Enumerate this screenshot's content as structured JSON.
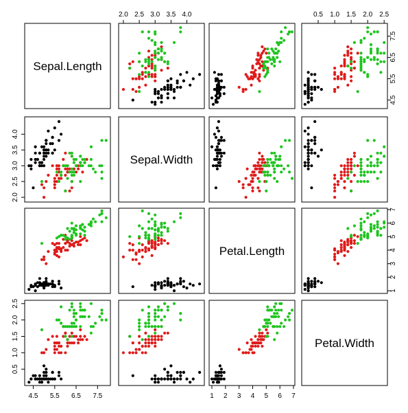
{
  "chart_data": {
    "type": "scatter",
    "variables": [
      "Sepal.Length",
      "Sepal.Width",
      "Petal.Length",
      "Petal.Width"
    ],
    "axis_ranges": {
      "Sepal.Length": [
        4.1,
        8.1
      ],
      "Sepal.Width": [
        1.85,
        4.55
      ],
      "Petal.Length": [
        0.8,
        7.1
      ],
      "Petal.Width": [
        0.0,
        2.6
      ]
    },
    "ticks": {
      "Sepal.Length": {
        "values": [
          4.5,
          5.5,
          6.5,
          7.5
        ],
        "labels": [
          "4.5",
          "5.5",
          "6.5",
          "7.5"
        ]
      },
      "Sepal.Width": {
        "values": [
          2.0,
          2.5,
          3.0,
          3.5,
          4.0
        ],
        "labels": [
          "2.0",
          "2.5",
          "3.0",
          "3.5",
          "4.0"
        ]
      },
      "Petal.Length": {
        "values": [
          1,
          2,
          3,
          4,
          5,
          6,
          7
        ],
        "labels": [
          "1",
          "2",
          "3",
          "4",
          "5",
          "6",
          "7"
        ]
      },
      "Petal.Width": {
        "values": [
          0.5,
          1.0,
          1.5,
          2.0,
          2.5
        ],
        "labels": [
          "0.5",
          "1.0",
          "1.5",
          "2.0",
          "2.5"
        ]
      }
    },
    "grid": false,
    "legend": "none",
    "series": [
      {
        "color": "#000000",
        "points": [
          [
            5.1,
            3.5,
            1.4,
            0.2
          ],
          [
            4.9,
            3.0,
            1.4,
            0.2
          ],
          [
            4.7,
            3.2,
            1.3,
            0.2
          ],
          [
            4.6,
            3.1,
            1.5,
            0.2
          ],
          [
            5.0,
            3.6,
            1.4,
            0.2
          ],
          [
            5.4,
            3.9,
            1.7,
            0.4
          ],
          [
            4.6,
            3.4,
            1.4,
            0.3
          ],
          [
            5.0,
            3.4,
            1.5,
            0.2
          ],
          [
            4.4,
            2.9,
            1.4,
            0.2
          ],
          [
            4.9,
            3.1,
            1.5,
            0.1
          ],
          [
            5.4,
            3.7,
            1.5,
            0.2
          ],
          [
            4.8,
            3.4,
            1.6,
            0.2
          ],
          [
            4.8,
            3.0,
            1.4,
            0.1
          ],
          [
            4.3,
            3.0,
            1.1,
            0.1
          ],
          [
            5.8,
            4.0,
            1.2,
            0.2
          ],
          [
            5.7,
            4.4,
            1.5,
            0.4
          ],
          [
            5.4,
            3.9,
            1.3,
            0.4
          ],
          [
            5.1,
            3.5,
            1.4,
            0.3
          ],
          [
            5.7,
            3.8,
            1.7,
            0.3
          ],
          [
            5.1,
            3.8,
            1.5,
            0.3
          ],
          [
            5.4,
            3.4,
            1.7,
            0.2
          ],
          [
            5.1,
            3.7,
            1.5,
            0.4
          ],
          [
            4.6,
            3.6,
            1.0,
            0.2
          ],
          [
            5.1,
            3.3,
            1.7,
            0.5
          ],
          [
            4.8,
            3.4,
            1.9,
            0.2
          ],
          [
            5.0,
            3.0,
            1.6,
            0.2
          ],
          [
            5.0,
            3.4,
            1.6,
            0.4
          ],
          [
            5.2,
            3.5,
            1.5,
            0.2
          ],
          [
            5.2,
            3.4,
            1.4,
            0.2
          ],
          [
            4.7,
            3.2,
            1.6,
            0.2
          ],
          [
            4.8,
            3.1,
            1.6,
            0.2
          ],
          [
            5.4,
            3.4,
            1.5,
            0.4
          ],
          [
            5.2,
            4.1,
            1.5,
            0.1
          ],
          [
            5.5,
            4.2,
            1.4,
            0.2
          ],
          [
            4.9,
            3.1,
            1.5,
            0.2
          ],
          [
            5.0,
            3.2,
            1.2,
            0.2
          ],
          [
            5.5,
            3.5,
            1.3,
            0.2
          ],
          [
            4.9,
            3.6,
            1.4,
            0.1
          ],
          [
            4.4,
            3.0,
            1.3,
            0.2
          ],
          [
            5.1,
            3.4,
            1.5,
            0.2
          ],
          [
            5.0,
            3.5,
            1.3,
            0.3
          ],
          [
            4.5,
            2.3,
            1.3,
            0.3
          ],
          [
            4.4,
            3.2,
            1.3,
            0.2
          ],
          [
            5.0,
            3.5,
            1.6,
            0.6
          ],
          [
            5.1,
            3.8,
            1.9,
            0.4
          ],
          [
            4.8,
            3.0,
            1.4,
            0.3
          ],
          [
            5.1,
            3.8,
            1.6,
            0.2
          ],
          [
            4.6,
            3.2,
            1.4,
            0.2
          ],
          [
            5.3,
            3.7,
            1.5,
            0.2
          ],
          [
            5.0,
            3.3,
            1.4,
            0.2
          ]
        ]
      },
      {
        "color": "#df1b1b",
        "points": [
          [
            7.0,
            3.2,
            4.7,
            1.4
          ],
          [
            6.4,
            3.2,
            4.5,
            1.5
          ],
          [
            6.9,
            3.1,
            4.9,
            1.5
          ],
          [
            5.5,
            2.3,
            4.0,
            1.3
          ],
          [
            6.5,
            2.8,
            4.6,
            1.5
          ],
          [
            5.7,
            2.8,
            4.5,
            1.3
          ],
          [
            6.3,
            3.3,
            4.7,
            1.6
          ],
          [
            4.9,
            2.4,
            3.3,
            1.0
          ],
          [
            6.6,
            2.9,
            4.6,
            1.3
          ],
          [
            5.2,
            2.7,
            3.9,
            1.4
          ],
          [
            5.0,
            2.0,
            3.5,
            1.0
          ],
          [
            5.9,
            3.0,
            4.2,
            1.5
          ],
          [
            6.0,
            2.2,
            4.0,
            1.0
          ],
          [
            6.1,
            2.9,
            4.7,
            1.4
          ],
          [
            5.6,
            2.9,
            3.6,
            1.3
          ],
          [
            6.7,
            3.1,
            4.4,
            1.4
          ],
          [
            5.6,
            3.0,
            4.5,
            1.5
          ],
          [
            5.8,
            2.7,
            4.1,
            1.0
          ],
          [
            6.2,
            2.2,
            4.5,
            1.5
          ],
          [
            5.6,
            2.5,
            3.9,
            1.1
          ],
          [
            5.9,
            3.2,
            4.8,
            1.8
          ],
          [
            6.1,
            2.8,
            4.0,
            1.3
          ],
          [
            6.3,
            2.5,
            4.9,
            1.5
          ],
          [
            6.1,
            2.8,
            4.7,
            1.2
          ],
          [
            6.4,
            2.9,
            4.3,
            1.3
          ],
          [
            6.6,
            3.0,
            4.4,
            1.4
          ],
          [
            6.8,
            2.8,
            4.8,
            1.4
          ],
          [
            6.7,
            3.0,
            5.0,
            1.7
          ],
          [
            6.0,
            2.9,
            4.5,
            1.5
          ],
          [
            5.7,
            2.6,
            3.5,
            1.0
          ],
          [
            5.5,
            2.4,
            3.8,
            1.1
          ],
          [
            5.5,
            2.4,
            3.7,
            1.0
          ],
          [
            5.8,
            2.7,
            3.9,
            1.2
          ],
          [
            6.0,
            2.7,
            5.1,
            1.6
          ],
          [
            5.4,
            3.0,
            4.5,
            1.5
          ],
          [
            6.0,
            3.4,
            4.5,
            1.6
          ],
          [
            6.7,
            3.1,
            4.7,
            1.5
          ],
          [
            6.3,
            2.3,
            4.4,
            1.3
          ],
          [
            5.6,
            3.0,
            4.1,
            1.3
          ],
          [
            5.5,
            2.5,
            4.0,
            1.3
          ],
          [
            5.5,
            2.6,
            4.4,
            1.2
          ],
          [
            6.1,
            3.0,
            4.6,
            1.4
          ],
          [
            5.8,
            2.6,
            4.0,
            1.2
          ],
          [
            5.0,
            2.3,
            3.3,
            1.0
          ],
          [
            5.6,
            2.7,
            4.2,
            1.3
          ],
          [
            5.7,
            3.0,
            4.2,
            1.2
          ],
          [
            5.7,
            2.9,
            4.2,
            1.3
          ],
          [
            6.2,
            2.9,
            4.3,
            1.3
          ],
          [
            5.1,
            2.5,
            3.0,
            1.1
          ],
          [
            5.7,
            2.8,
            4.1,
            1.3
          ]
        ]
      },
      {
        "color": "#1fc41f",
        "points": [
          [
            6.3,
            3.3,
            6.0,
            2.5
          ],
          [
            5.8,
            2.7,
            5.1,
            1.9
          ],
          [
            7.1,
            3.0,
            5.9,
            2.1
          ],
          [
            6.3,
            2.9,
            5.6,
            1.8
          ],
          [
            6.5,
            3.0,
            5.8,
            2.2
          ],
          [
            7.6,
            3.0,
            6.6,
            2.1
          ],
          [
            4.9,
            2.5,
            4.5,
            1.7
          ],
          [
            7.3,
            2.9,
            6.3,
            1.8
          ],
          [
            6.7,
            2.5,
            5.8,
            1.8
          ],
          [
            7.2,
            3.6,
            6.1,
            2.5
          ],
          [
            6.5,
            3.2,
            5.1,
            2.0
          ],
          [
            6.4,
            2.7,
            5.3,
            1.9
          ],
          [
            6.8,
            3.0,
            5.5,
            2.1
          ],
          [
            5.7,
            2.5,
            5.0,
            2.0
          ],
          [
            5.8,
            2.8,
            5.1,
            2.4
          ],
          [
            6.4,
            3.2,
            5.3,
            2.3
          ],
          [
            6.5,
            3.0,
            5.5,
            1.8
          ],
          [
            7.7,
            3.8,
            6.7,
            2.2
          ],
          [
            7.7,
            2.6,
            6.9,
            2.3
          ],
          [
            6.0,
            2.2,
            5.0,
            1.5
          ],
          [
            6.9,
            3.2,
            5.7,
            2.3
          ],
          [
            5.6,
            2.8,
            4.9,
            2.0
          ],
          [
            7.7,
            2.8,
            6.7,
            2.0
          ],
          [
            6.3,
            2.7,
            4.9,
            1.8
          ],
          [
            6.7,
            3.3,
            5.7,
            2.1
          ],
          [
            7.2,
            3.2,
            6.0,
            1.8
          ],
          [
            6.2,
            2.8,
            4.8,
            1.8
          ],
          [
            6.1,
            3.0,
            4.9,
            1.8
          ],
          [
            6.4,
            2.8,
            5.6,
            2.1
          ],
          [
            7.2,
            3.0,
            5.8,
            1.6
          ],
          [
            7.4,
            2.8,
            6.1,
            1.9
          ],
          [
            7.9,
            3.8,
            6.4,
            2.0
          ],
          [
            6.4,
            2.8,
            5.6,
            2.2
          ],
          [
            6.3,
            2.8,
            5.1,
            1.5
          ],
          [
            6.1,
            2.6,
            5.6,
            1.4
          ],
          [
            7.7,
            3.0,
            6.1,
            2.3
          ],
          [
            6.3,
            3.4,
            5.6,
            2.4
          ],
          [
            6.4,
            3.1,
            5.5,
            1.8
          ],
          [
            6.0,
            3.0,
            4.8,
            1.8
          ],
          [
            6.9,
            3.1,
            5.4,
            2.1
          ],
          [
            6.7,
            3.1,
            5.6,
            2.4
          ],
          [
            6.9,
            3.1,
            5.1,
            2.3
          ],
          [
            5.8,
            2.7,
            5.1,
            1.9
          ],
          [
            6.8,
            3.2,
            5.9,
            2.3
          ],
          [
            6.7,
            3.3,
            5.7,
            2.5
          ],
          [
            6.7,
            3.0,
            5.2,
            2.3
          ],
          [
            6.3,
            2.5,
            5.0,
            1.9
          ],
          [
            6.5,
            3.0,
            5.2,
            2.0
          ],
          [
            6.2,
            3.4,
            5.4,
            2.3
          ],
          [
            5.9,
            3.0,
            5.1,
            1.8
          ]
        ]
      }
    ]
  }
}
